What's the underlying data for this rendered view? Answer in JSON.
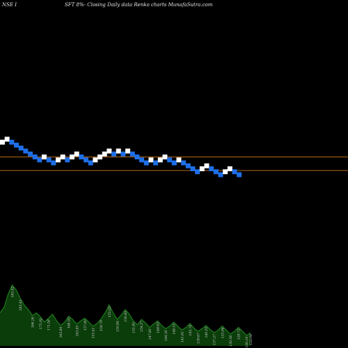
{
  "header": {
    "left_text": "NSE I",
    "center_text": "SFT 8%-  Closing Daily data Renko  charts MunafaSutra.com"
  },
  "colors": {
    "background": "#000000",
    "up_brick": "#ffffff",
    "down_brick": "#1e6fe8",
    "reference_line": "#b06a1a",
    "volume_fill": "#0b3d0b",
    "volume_top": "#1f7a1f"
  },
  "chart_data": {
    "type": "renko",
    "title": "",
    "xlabel": "",
    "ylabel": "",
    "ylim": [
      0,
      1
    ],
    "bricks": [
      {
        "dir": "up",
        "level": 0.95
      },
      {
        "dir": "up",
        "level": 1.0
      },
      {
        "dir": "down",
        "level": 0.95
      },
      {
        "dir": "down",
        "level": 0.9
      },
      {
        "dir": "down",
        "level": 0.85
      },
      {
        "dir": "down",
        "level": 0.8
      },
      {
        "dir": "down",
        "level": 0.75
      },
      {
        "dir": "down",
        "level": 0.7
      },
      {
        "dir": "down",
        "level": 0.65
      },
      {
        "dir": "up",
        "level": 0.7
      },
      {
        "dir": "down",
        "level": 0.65
      },
      {
        "dir": "down",
        "level": 0.6
      },
      {
        "dir": "up",
        "level": 0.65
      },
      {
        "dir": "up",
        "level": 0.7
      },
      {
        "dir": "down",
        "level": 0.65
      },
      {
        "dir": "up",
        "level": 0.7
      },
      {
        "dir": "up",
        "level": 0.75
      },
      {
        "dir": "down",
        "level": 0.7
      },
      {
        "dir": "down",
        "level": 0.65
      },
      {
        "dir": "down",
        "level": 0.6
      },
      {
        "dir": "up",
        "level": 0.65
      },
      {
        "dir": "up",
        "level": 0.7
      },
      {
        "dir": "up",
        "level": 0.75
      },
      {
        "dir": "up",
        "level": 0.8
      },
      {
        "dir": "down",
        "level": 0.75
      },
      {
        "dir": "up",
        "level": 0.8
      },
      {
        "dir": "down",
        "level": 0.75
      },
      {
        "dir": "up",
        "level": 0.8
      },
      {
        "dir": "down",
        "level": 0.75
      },
      {
        "dir": "down",
        "level": 0.7
      },
      {
        "dir": "down",
        "level": 0.65
      },
      {
        "dir": "down",
        "level": 0.6
      },
      {
        "dir": "up",
        "level": 0.65
      },
      {
        "dir": "down",
        "level": 0.6
      },
      {
        "dir": "up",
        "level": 0.65
      },
      {
        "dir": "up",
        "level": 0.7
      },
      {
        "dir": "down",
        "level": 0.65
      },
      {
        "dir": "down",
        "level": 0.6
      },
      {
        "dir": "up",
        "level": 0.65
      },
      {
        "dir": "down",
        "level": 0.6
      },
      {
        "dir": "down",
        "level": 0.55
      },
      {
        "dir": "down",
        "level": 0.5
      },
      {
        "dir": "down",
        "level": 0.45
      },
      {
        "dir": "up",
        "level": 0.5
      },
      {
        "dir": "up",
        "level": 0.55
      },
      {
        "dir": "down",
        "level": 0.5
      },
      {
        "dir": "down",
        "level": 0.45
      },
      {
        "dir": "down",
        "level": 0.4
      },
      {
        "dir": "up",
        "level": 0.45
      },
      {
        "dir": "up",
        "level": 0.5
      },
      {
        "dir": "down",
        "level": 0.45
      },
      {
        "dir": "down",
        "level": 0.4
      }
    ],
    "reference_lines": [
      {
        "level": 0.7,
        "color": "#b06a1a"
      },
      {
        "level": 0.47,
        "color": "#b06a1a"
      }
    ],
    "volume": {
      "values": [
        0.5,
        0.58,
        0.78,
        0.92,
        0.85,
        0.72,
        0.62,
        0.55,
        0.46,
        0.5,
        0.44,
        0.36,
        0.42,
        0.48,
        0.38,
        0.31,
        0.36,
        0.45,
        0.4,
        0.33,
        0.38,
        0.42,
        0.36,
        0.3,
        0.34,
        0.41,
        0.5,
        0.62,
        0.5,
        0.4,
        0.47,
        0.55,
        0.48,
        0.38,
        0.32,
        0.4,
        0.35,
        0.28,
        0.33,
        0.38,
        0.31,
        0.26,
        0.3,
        0.36,
        0.3,
        0.24,
        0.28,
        0.34,
        0.27,
        0.22,
        0.26,
        0.31,
        0.25,
        0.2,
        0.24,
        0.3,
        0.24,
        0.18,
        0.22,
        0.28,
        0.22,
        0.16,
        0.2
      ],
      "labels": [
        {
          "bar": 3,
          "text": "183.42"
        },
        {
          "bar": 5,
          "text": "183.43"
        },
        {
          "bar": 8,
          "text": "186.26"
        },
        {
          "bar": 10,
          "text": "175.00"
        },
        {
          "bar": 12,
          "text": "171.58"
        },
        {
          "bar": 15,
          "text": "163.84"
        },
        {
          "bar": 17,
          "text": "168.50"
        },
        {
          "bar": 19,
          "text": "163.85"
        },
        {
          "bar": 21,
          "text": "157.80"
        },
        {
          "bar": 23,
          "text": "153.41"
        },
        {
          "bar": 25,
          "text": "158.79"
        },
        {
          "bar": 27,
          "text": "155.02"
        },
        {
          "bar": 29,
          "text": "150.84"
        },
        {
          "bar": 31,
          "text": "156.60"
        },
        {
          "bar": 33,
          "text": "151.80"
        },
        {
          "bar": 35,
          "text": "154.57"
        },
        {
          "bar": 37,
          "text": "147.80"
        },
        {
          "bar": 39,
          "text": "148.65"
        },
        {
          "bar": 41,
          "text": "144.30"
        },
        {
          "bar": 43,
          "text": "148.55"
        },
        {
          "bar": 45,
          "text": "141.61"
        },
        {
          "bar": 47,
          "text": "143.78"
        },
        {
          "bar": 49,
          "text": "139.67"
        },
        {
          "bar": 51,
          "text": "140.50"
        },
        {
          "bar": 53,
          "text": "137.27"
        },
        {
          "bar": 55,
          "text": "133.06"
        },
        {
          "bar": 57,
          "text": "130.58"
        },
        {
          "bar": 59,
          "text": "128.73"
        },
        {
          "bar": 61,
          "text": "126.14"
        },
        {
          "bar": 62,
          "text": "122.04"
        }
      ]
    }
  }
}
